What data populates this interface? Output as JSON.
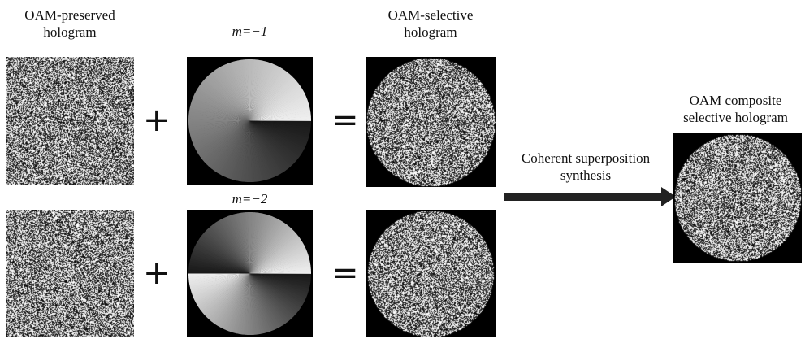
{
  "labels": {
    "preserved_line1": "OAM-preserved",
    "preserved_line2": "hologram",
    "selective_line1": "OAM-selective",
    "selective_line2": "hologram",
    "composite_line1": "OAM composite",
    "composite_line2": "selective hologram",
    "m1": "m=−1",
    "m2": "m=−2",
    "arrow_line1": "Coherent superposition",
    "arrow_line2": "synthesis"
  },
  "operators": {
    "plus": "+",
    "equals": "="
  },
  "colors": {
    "panel_bg": "#000000",
    "noise_bright": "#ffffff",
    "text": "#111111"
  },
  "spiral_phase": {
    "row1_m": -1,
    "row2_m": -2
  }
}
